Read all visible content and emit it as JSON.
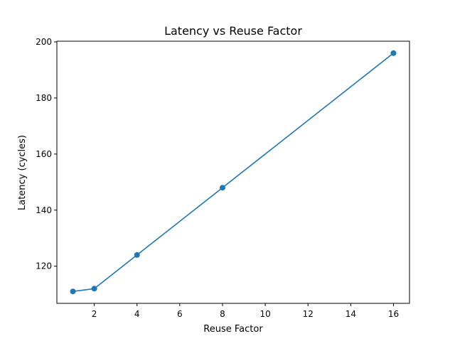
{
  "chart_data": {
    "type": "line",
    "title": "Latency vs Reuse Factor",
    "xlabel": "Reuse Factor",
    "ylabel": "Latency (cycles)",
    "x": [
      1,
      2,
      4,
      8,
      16
    ],
    "series": [
      {
        "values": [
          111,
          112,
          124,
          148,
          196
        ],
        "color": "#1f77b4",
        "marker": "circle"
      }
    ],
    "xlim": [
      0.25,
      16.75
    ],
    "ylim": [
      106.75,
      200.25
    ],
    "xticks": [
      2,
      4,
      6,
      8,
      10,
      12,
      14,
      16
    ],
    "yticks": [
      120,
      140,
      160,
      180,
      200
    ],
    "grid": false,
    "legend": false
  }
}
